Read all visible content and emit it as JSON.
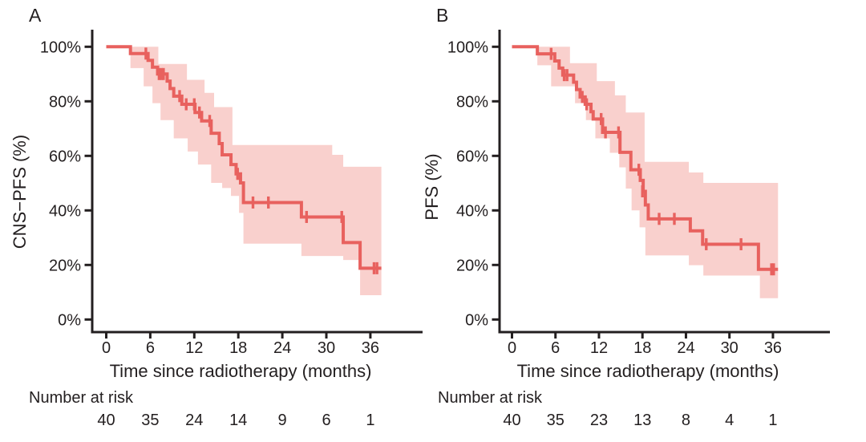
{
  "colors": {
    "curve": "#e8615e",
    "ci_band": "#f9d0cd",
    "axis": "#231f20",
    "text": "#231f20",
    "background": "#ffffff"
  },
  "chart_data": [
    {
      "type": "line",
      "subtype": "kaplan_meier_step",
      "panel_label": "A",
      "xlabel": "Time since radiotherapy (months)",
      "ylabel": "CNS−PFS (%)",
      "xlim": [
        0,
        38
      ],
      "ylim": [
        0,
        100
      ],
      "grid": false,
      "legend": false,
      "x_ticks": [
        {
          "value": 0,
          "label": "0"
        },
        {
          "value": 6,
          "label": "6"
        },
        {
          "value": 12,
          "label": "12"
        },
        {
          "value": 18,
          "label": "18"
        },
        {
          "value": 24,
          "label": "24"
        },
        {
          "value": 30,
          "label": "30"
        },
        {
          "value": 36,
          "label": "36"
        }
      ],
      "y_ticks": [
        {
          "value": 0,
          "label": "0%"
        },
        {
          "value": 20,
          "label": "20%"
        },
        {
          "value": 40,
          "label": "40%"
        },
        {
          "value": 60,
          "label": "60%"
        },
        {
          "value": 80,
          "label": "80%"
        },
        {
          "value": 100,
          "label": "100%"
        }
      ],
      "x_end": 37.5,
      "survival_steps": [
        [
          0,
          100
        ],
        [
          3.3,
          97.5
        ],
        [
          5.7,
          95.0
        ],
        [
          6.3,
          92.5
        ],
        [
          7.0,
          90.0
        ],
        [
          8.3,
          87.4
        ],
        [
          8.7,
          84.7
        ],
        [
          9.2,
          81.9
        ],
        [
          10.3,
          78.9
        ],
        [
          12.1,
          75.9
        ],
        [
          13.0,
          72.8
        ],
        [
          14.3,
          68.3
        ],
        [
          15.4,
          64.5
        ],
        [
          15.8,
          60.4
        ],
        [
          17.0,
          56.8
        ],
        [
          17.7,
          53.4
        ],
        [
          18.3,
          50.1
        ],
        [
          18.7,
          42.9
        ],
        [
          26.6,
          37.6
        ],
        [
          32.3,
          28.2
        ],
        [
          34.6,
          18.8
        ]
      ],
      "censor_marks": [
        [
          5.4,
          97.5
        ],
        [
          7.2,
          90.0
        ],
        [
          7.5,
          90.0
        ],
        [
          7.8,
          90.0
        ],
        [
          10.0,
          81.9
        ],
        [
          10.9,
          78.9
        ],
        [
          12.0,
          78.9
        ],
        [
          12.7,
          75.9
        ],
        [
          14.1,
          72.8
        ],
        [
          17.9,
          53.4
        ],
        [
          20.0,
          42.9
        ],
        [
          22.1,
          42.9
        ],
        [
          27.3,
          37.6
        ],
        [
          32.1,
          37.6
        ],
        [
          36.5,
          18.8
        ],
        [
          36.9,
          18.8
        ]
      ],
      "ci_upper": [
        [
          3.3,
          100
        ],
        [
          7.1,
          93.7
        ],
        [
          11.0,
          87.9
        ],
        [
          13.4,
          83.1
        ],
        [
          14.7,
          77.9
        ],
        [
          17.2,
          64.0
        ],
        [
          30.8,
          60.4
        ],
        [
          32.3,
          56.0
        ]
      ],
      "ci_lower": [
        [
          3.3,
          92.2
        ],
        [
          5.1,
          85.5
        ],
        [
          6.3,
          79.3
        ],
        [
          7.4,
          73.1
        ],
        [
          9.2,
          66.4
        ],
        [
          11.1,
          61.6
        ],
        [
          12.5,
          56.8
        ],
        [
          14.3,
          50.1
        ],
        [
          15.8,
          48.2
        ],
        [
          17.0,
          45.3
        ],
        [
          18.1,
          39.1
        ],
        [
          18.7,
          27.8
        ],
        [
          26.6,
          23.3
        ],
        [
          32.3,
          21.8
        ],
        [
          34.6,
          8.9
        ]
      ],
      "risk_table": {
        "header": "Number at risk",
        "times": [
          0,
          6,
          12,
          18,
          24,
          30,
          36
        ],
        "counts": [
          "40",
          "35",
          "24",
          "14",
          "9",
          "6",
          "1"
        ]
      }
    },
    {
      "type": "line",
      "subtype": "kaplan_meier_step",
      "panel_label": "B",
      "xlabel": "Time since radiotherapy (months)",
      "ylabel": "PFS (%)",
      "xlim": [
        0,
        38
      ],
      "ylim": [
        0,
        100
      ],
      "grid": false,
      "legend": false,
      "x_ticks": [
        {
          "value": 0,
          "label": "0"
        },
        {
          "value": 6,
          "label": "6"
        },
        {
          "value": 12,
          "label": "12"
        },
        {
          "value": 18,
          "label": "18"
        },
        {
          "value": 24,
          "label": "24"
        },
        {
          "value": 30,
          "label": "30"
        },
        {
          "value": 36,
          "label": "36"
        }
      ],
      "y_ticks": [
        {
          "value": 0,
          "label": "0%"
        },
        {
          "value": 20,
          "label": "20%"
        },
        {
          "value": 40,
          "label": "40%"
        },
        {
          "value": 60,
          "label": "60%"
        },
        {
          "value": 80,
          "label": "80%"
        },
        {
          "value": 100,
          "label": "100%"
        }
      ],
      "x_end": 36.7,
      "survival_steps": [
        [
          0,
          100
        ],
        [
          3.5,
          97.4
        ],
        [
          5.9,
          94.8
        ],
        [
          6.5,
          92.2
        ],
        [
          7.0,
          89.6
        ],
        [
          8.5,
          87.0
        ],
        [
          8.9,
          84.3
        ],
        [
          9.4,
          81.6
        ],
        [
          10.1,
          78.9
        ],
        [
          10.9,
          76.2
        ],
        [
          11.2,
          73.5
        ],
        [
          12.5,
          68.6
        ],
        [
          14.9,
          61.3
        ],
        [
          16.4,
          54.9
        ],
        [
          17.7,
          51.0
        ],
        [
          18.1,
          47.0
        ],
        [
          18.4,
          42.0
        ],
        [
          18.8,
          36.9
        ],
        [
          24.6,
          32.5
        ],
        [
          26.3,
          27.6
        ],
        [
          34.0,
          18.4
        ]
      ],
      "censor_marks": [
        [
          5.4,
          97.4
        ],
        [
          7.2,
          89.6
        ],
        [
          7.6,
          89.6
        ],
        [
          9.7,
          81.6
        ],
        [
          10.3,
          78.9
        ],
        [
          12.3,
          73.5
        ],
        [
          12.9,
          68.6
        ],
        [
          14.7,
          68.6
        ],
        [
          17.5,
          54.9
        ],
        [
          18.0,
          47.0
        ],
        [
          20.3,
          36.9
        ],
        [
          22.4,
          36.9
        ],
        [
          26.8,
          27.6
        ],
        [
          31.6,
          27.6
        ],
        [
          35.8,
          18.4
        ],
        [
          36.1,
          18.4
        ]
      ],
      "ci_upper": [
        [
          3.5,
          100
        ],
        [
          8.0,
          94.0
        ],
        [
          11.7,
          87.4
        ],
        [
          14.2,
          82.2
        ],
        [
          15.7,
          75.9
        ],
        [
          18.3,
          57.8
        ],
        [
          24.4,
          53.9
        ],
        [
          26.4,
          50.1
        ]
      ],
      "ci_lower": [
        [
          3.5,
          93.2
        ],
        [
          5.4,
          85.5
        ],
        [
          8.7,
          79.3
        ],
        [
          10.2,
          73.1
        ],
        [
          11.5,
          66.4
        ],
        [
          13.5,
          61.1
        ],
        [
          14.8,
          55.8
        ],
        [
          15.7,
          48.0
        ],
        [
          16.5,
          40.0
        ],
        [
          17.6,
          33.8
        ],
        [
          18.4,
          23.5
        ],
        [
          24.4,
          19.9
        ],
        [
          26.4,
          16.1
        ],
        [
          34.2,
          7.8
        ]
      ],
      "risk_table": {
        "header": "Number at risk",
        "times": [
          0,
          6,
          12,
          18,
          24,
          30,
          36
        ],
        "counts": [
          "40",
          "35",
          "23",
          "13",
          "8",
          "4",
          "1"
        ]
      }
    }
  ]
}
